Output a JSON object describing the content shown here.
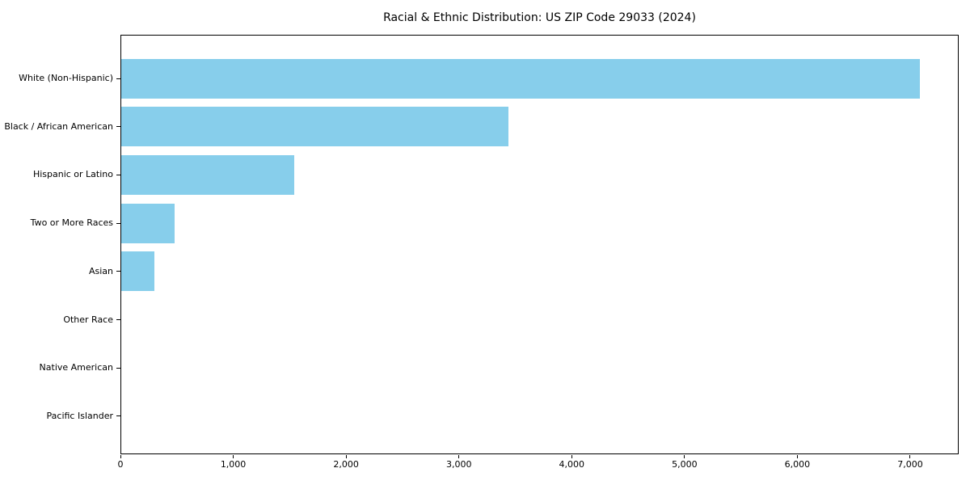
{
  "page": {
    "background_color": "#ffffff",
    "text_color": "#000000"
  },
  "chart_data": {
    "type": "bar",
    "orientation": "horizontal",
    "title": "Racial & Ethnic Distribution: US ZIP Code 29033 (2024)",
    "categories": [
      "White (Non-Hispanic)",
      "Black / African American",
      "Hispanic or Latino",
      "Two or More Races",
      "Asian",
      "Other Race",
      "Native American",
      "Pacific Islander"
    ],
    "values": [
      7080,
      3435,
      1530,
      475,
      295,
      0,
      0,
      0
    ],
    "xlabel": "",
    "ylabel": "",
    "xlim": [
      0,
      7430
    ],
    "xticks": [
      0,
      1000,
      2000,
      3000,
      4000,
      5000,
      6000,
      7000
    ],
    "xtick_labels": [
      "0",
      "1,000",
      "2,000",
      "3,000",
      "4,000",
      "5,000",
      "6,000",
      "7,000"
    ],
    "bar_color": "#87CEEB",
    "spine_color": "#000000",
    "grid": false,
    "legend": "none",
    "sort": "descending-top-to-bottom"
  }
}
